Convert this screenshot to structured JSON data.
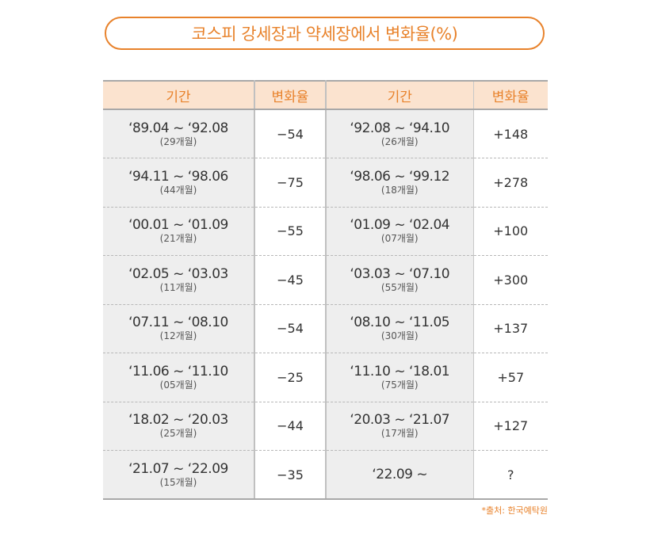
{
  "chart_data": {
    "type": "table",
    "title": "코스피 강세장과 약세장에서 변화율(%)",
    "columns": [
      "기간",
      "변화율",
      "기간",
      "변화율"
    ],
    "rows": [
      {
        "bear_period": "‘89.04 ~ ‘92.08",
        "bear_months": "(29개월)",
        "bear_change": "−54",
        "bull_period": "‘92.08 ~ ‘94.10",
        "bull_months": "(26개월)",
        "bull_change": "+148"
      },
      {
        "bear_period": "‘94.11 ~ ‘98.06",
        "bear_months": "(44개월)",
        "bear_change": "−75",
        "bull_period": "‘98.06 ~ ‘99.12",
        "bull_months": "(18개월)",
        "bull_change": "+278"
      },
      {
        "bear_period": "‘00.01 ~ ‘01.09",
        "bear_months": "(21개월)",
        "bear_change": "−55",
        "bull_period": "‘01.09 ~ ‘02.04",
        "bull_months": "(07개월)",
        "bull_change": "+100"
      },
      {
        "bear_period": "‘02.05 ~ ‘03.03",
        "bear_months": "(11개월)",
        "bear_change": "−45",
        "bull_period": "‘03.03 ~ ‘07.10",
        "bull_months": "(55개월)",
        "bull_change": "+300"
      },
      {
        "bear_period": "‘07.11 ~ ‘08.10",
        "bear_months": "(12개월)",
        "bear_change": "−54",
        "bull_period": "‘08.10 ~ ‘11.05",
        "bull_months": "(30개월)",
        "bull_change": "+137"
      },
      {
        "bear_period": "‘11.06 ~ ‘11.10",
        "bear_months": "(05개월)",
        "bear_change": "−25",
        "bull_period": "‘11.10 ~ ‘18.01",
        "bull_months": "(75개월)",
        "bull_change": "+57"
      },
      {
        "bear_period": "‘18.02 ~ ‘20.03",
        "bear_months": "(25개월)",
        "bear_change": "−44",
        "bull_period": "‘20.03 ~ ‘21.07",
        "bull_months": "(17개월)",
        "bull_change": "+127"
      },
      {
        "bear_period": "‘21.07 ~ ‘22.09",
        "bear_months": "(15개월)",
        "bear_change": "−35",
        "bull_period": "‘22.09 ~",
        "bull_months": "",
        "bull_change": "?"
      }
    ],
    "source": "*출처: 한국예탁원"
  },
  "colors": {
    "accent": "#e8822b",
    "header_bg": "#fbe3cf",
    "period_bg": "#eeeeee"
  }
}
